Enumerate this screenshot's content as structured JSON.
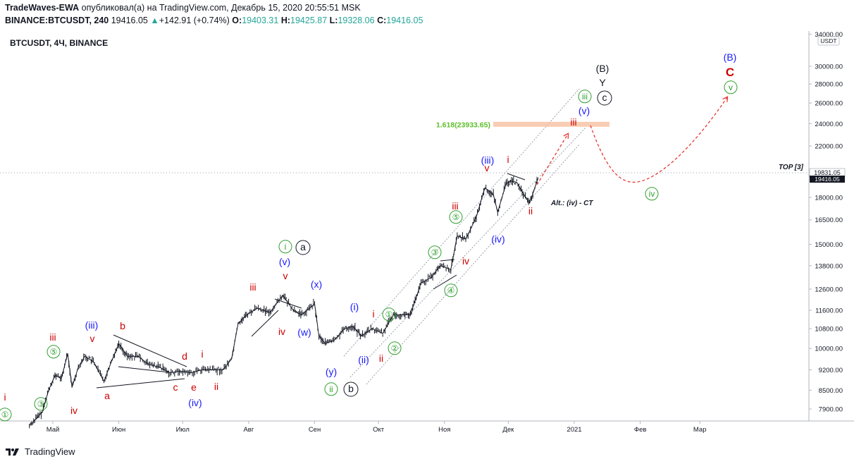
{
  "header": {
    "author": "TradeWaves-EWA",
    "published_text": "опубликовал(а) на TradingView.com, Декабрь 15, 2020 20:55:51 MSK",
    "symbol_line": "BINANCE:BTCUSDT, 240",
    "last_price": "19416.05",
    "change_arrow": "▲",
    "change": "+142.91 (+0.74%)",
    "o_label": "O:",
    "o_value": "19403.31",
    "h_label": "H:",
    "h_value": "19425.87",
    "l_label": "L:",
    "l_value": "19328.06",
    "c_label": "C:",
    "c_value": "19416.05"
  },
  "legend_title": "BTCUSDT, 4Ч, BINANCE",
  "footer": {
    "brand": "TradingView",
    "logo_icon": "tradingview-logo-icon"
  },
  "colors": {
    "candle": "#131722",
    "wave_red": "#cc0000",
    "wave_blue": "#1a1aff",
    "wave_green": "#2e9e2e",
    "fib": "#f5b894",
    "projection": "#e53935"
  },
  "chart_data": {
    "type": "line",
    "title": "BTCUSDT, 4Ч, BINANCE",
    "scale": "log",
    "ylim": [
      7500,
      34000
    ],
    "currency_label": "USDT",
    "y_ticks": [
      "34000.00",
      "30000.00",
      "28000.00",
      "26000.00",
      "24000.00",
      "22000.00",
      "18000.00",
      "16500.00",
      "15000.00",
      "13800.00",
      "12600.00",
      "11600.00",
      "10800.00",
      "10000.00",
      "9200.00",
      "8500.00",
      "7900.00"
    ],
    "x_labels": [
      "Май",
      "Июн",
      "Июл",
      "Авг",
      "Сен",
      "Окт",
      "Ноя",
      "Дек",
      "2021",
      "Фев",
      "Мар"
    ],
    "price_labels": {
      "high": "19831.05",
      "last": "19416.05"
    },
    "top_label": "TOP [3]",
    "fib_label": "1.618(23933.65)",
    "fib_value": 23933.65,
    "alt_label": "Alt.: (iv) - CT",
    "series": [
      {
        "x": [
          "2020-04-20",
          "2020-04-23",
          "2020-04-26",
          "2020-04-29",
          "2020-05-02",
          "2020-05-05",
          "2020-05-08",
          "2020-05-10",
          "2020-05-13",
          "2020-05-16",
          "2020-05-20",
          "2020-05-25",
          "2020-05-28",
          "2020-06-01",
          "2020-06-05",
          "2020-06-10",
          "2020-06-15",
          "2020-06-20",
          "2020-06-25",
          "2020-06-30",
          "2020-07-05",
          "2020-07-10",
          "2020-07-15",
          "2020-07-20",
          "2020-07-24",
          "2020-07-27",
          "2020-07-31",
          "2020-08-05",
          "2020-08-11",
          "2020-08-17",
          "2020-08-22",
          "2020-08-26",
          "2020-09-01",
          "2020-09-03",
          "2020-09-06",
          "2020-09-10",
          "2020-09-15",
          "2020-09-19",
          "2020-09-23",
          "2020-09-28",
          "2020-10-03",
          "2020-10-08",
          "2020-10-12",
          "2020-10-16",
          "2020-10-21",
          "2020-10-26",
          "2020-10-30",
          "2020-11-04",
          "2020-11-07",
          "2020-11-11",
          "2020-11-16",
          "2020-11-20",
          "2020-11-24",
          "2020-11-26",
          "2020-11-30",
          "2020-12-02",
          "2020-12-05",
          "2020-12-08",
          "2020-12-11",
          "2020-12-15"
        ],
        "y": [
          7400,
          7600,
          7800,
          8500,
          9000,
          8900,
          9800,
          8600,
          9300,
          9700,
          9500,
          8800,
          9400,
          10200,
          9700,
          9700,
          9400,
          9300,
          9100,
          9150,
          9100,
          9200,
          9200,
          9200,
          9600,
          11000,
          11400,
          11700,
          11500,
          12300,
          11600,
          11400,
          11900,
          10500,
          10200,
          10300,
          10800,
          10900,
          10500,
          10800,
          10600,
          11400,
          11400,
          11400,
          12900,
          13200,
          13800,
          13600,
          15500,
          15300,
          16700,
          18700,
          18200,
          17000,
          19000,
          19200,
          19100,
          18300,
          17600,
          19416.05
        ]
      }
    ],
    "wave_labels": {
      "red": [
        "i",
        "iii",
        "iv",
        "v",
        "a",
        "b",
        "c",
        "d",
        "e",
        "i",
        "ii",
        "iii",
        "iv",
        "v",
        "i",
        "ii",
        "iii",
        "iv",
        "v",
        "i",
        "ii",
        "iii"
      ],
      "blue": [
        "(iii)",
        "(iv)",
        "(v)",
        "(w)",
        "(x)",
        "(y)",
        "(i)",
        "(ii)",
        "(iii)",
        "(iv)",
        "(v)",
        "(B)"
      ],
      "green": [
        "①",
        "③",
        "⑤",
        "i",
        "ii",
        "①",
        "②",
        "③",
        "④",
        "⑤",
        "iii",
        "iv",
        "v"
      ],
      "black": [
        "a",
        "b",
        "c",
        "(B)",
        "Y"
      ],
      "red_big": [
        "C"
      ]
    }
  }
}
